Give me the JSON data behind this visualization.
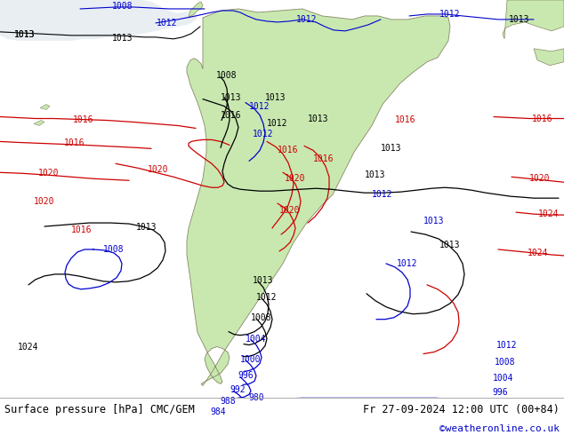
{
  "title_left": "Surface pressure [hPa] CMC/GEM",
  "title_right": "Fr 27-09-2024 12:00 UTC (00+84)",
  "watermark": "©weatheronline.co.uk",
  "ocean_color": "#e8eef2",
  "land_color": "#c8e8b0",
  "land_edge": "#888866",
  "black_color": "#000000",
  "red_color": "#cc0000",
  "blue_color": "#0000cc",
  "footer_bg": "#ffffff",
  "footer_line": "#cccccc",
  "title_fontsize": 8.5,
  "label_fontsize": 7.0
}
